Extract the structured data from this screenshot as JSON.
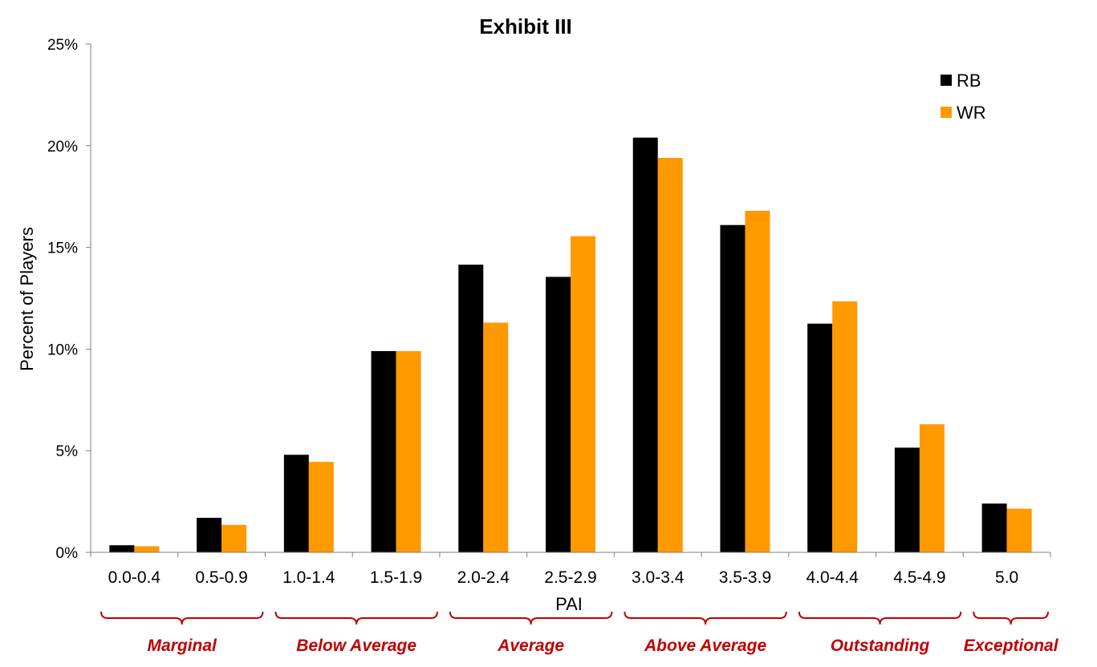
{
  "colors": {
    "rb": "#000000",
    "wr": "#FF9900",
    "group_label": "#C00000",
    "axis": "#7f7f7f"
  },
  "chart_data": {
    "type": "bar",
    "title": "Exhibit III",
    "xlabel": "PAI",
    "ylabel": "Percent of Players",
    "ylim": [
      0,
      25
    ],
    "y_ticks": [
      "0%",
      "5%",
      "10%",
      "15%",
      "20%",
      "25%"
    ],
    "categories": [
      "0.0-0.4",
      "0.5-0.9",
      "1.0-1.4",
      "1.5-1.9",
      "2.0-2.4",
      "2.5-2.9",
      "3.0-3.4",
      "3.5-3.9",
      "4.0-4.4",
      "4.5-4.9",
      "5.0"
    ],
    "series": [
      {
        "name": "RB",
        "values": [
          0.35,
          1.7,
          4.8,
          9.9,
          14.15,
          13.55,
          20.4,
          16.1,
          11.25,
          5.15,
          2.4
        ]
      },
      {
        "name": "WR",
        "values": [
          0.3,
          1.35,
          4.45,
          9.9,
          11.3,
          15.55,
          19.4,
          16.8,
          12.35,
          6.3,
          2.15
        ]
      }
    ],
    "legend_position": "top-right",
    "grid": false,
    "groups": [
      {
        "label": "Marginal",
        "from": 0,
        "to": 1
      },
      {
        "label": "Below Average",
        "from": 2,
        "to": 3
      },
      {
        "label": "Average",
        "from": 4,
        "to": 5
      },
      {
        "label": "Above Average",
        "from": 6,
        "to": 7
      },
      {
        "label": "Outstanding",
        "from": 8,
        "to": 9
      },
      {
        "label": "Exceptional",
        "from": 10,
        "to": 10
      }
    ]
  }
}
